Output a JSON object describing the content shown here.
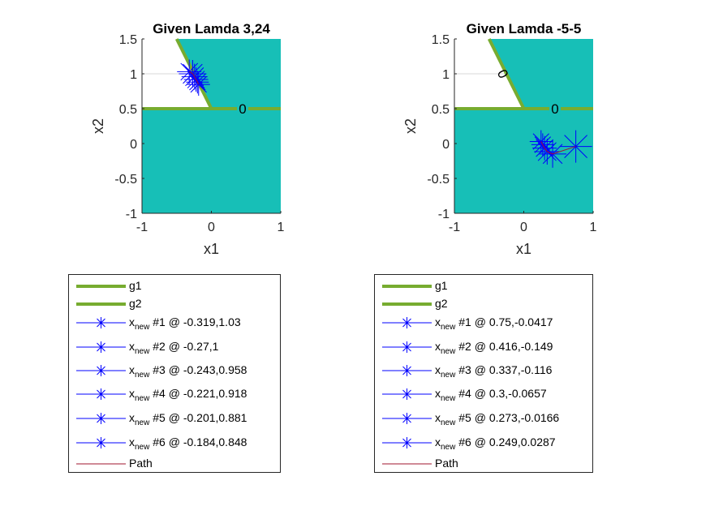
{
  "chart_data": [
    {
      "type": "contour",
      "title": "Given Lamda 3,24",
      "xlabel": "x1",
      "ylabel": "x2",
      "xlim": [
        -1,
        1
      ],
      "ylim": [
        -1,
        1.5
      ],
      "xticks": [
        "-1",
        "0",
        "1"
      ],
      "yticks": [
        "1.5",
        "1",
        "0.5",
        "0",
        "-0.5",
        "-1"
      ],
      "feasible_region_color": "#17bfb7",
      "constraint_color": "#77ac30",
      "marker_color": "#0000ff",
      "path_color": "#a2142f",
      "constraint_g1": {
        "name": "g1",
        "label": "",
        "points": [
          [
            -0.5,
            1.5
          ],
          [
            0,
            0.5
          ]
        ]
      },
      "constraint_g2": {
        "name": "g2",
        "label": "0",
        "points": [
          [
            -1,
            0.5
          ],
          [
            1,
            0.5
          ]
        ],
        "label_at": [
          0.45,
          0.5
        ]
      },
      "series": [
        {
          "name": "#1 @ -0.319,1.03",
          "x": -0.319,
          "y": 1.03
        },
        {
          "name": "#2 @ -0.27,1",
          "x": -0.27,
          "y": 1.0
        },
        {
          "name": "#3 @ -0.243,0.958",
          "x": -0.243,
          "y": 0.958
        },
        {
          "name": "#4 @ -0.221,0.918",
          "x": -0.221,
          "y": 0.918
        },
        {
          "name": "#5 @ -0.201,0.881",
          "x": -0.201,
          "y": 0.881
        },
        {
          "name": "#6 @ -0.184,0.848",
          "x": -0.184,
          "y": 0.848
        }
      ],
      "legend": {
        "g1": "g1",
        "g2": "g2",
        "x_base": "x",
        "x_sub": "new",
        "path": "Path"
      }
    },
    {
      "type": "contour",
      "title": "Given Lamda -5-5",
      "xlabel": "x1",
      "ylabel": "x2",
      "xlim": [
        -1,
        1
      ],
      "ylim": [
        -1,
        1.5
      ],
      "xticks": [
        "-1",
        "0",
        "1"
      ],
      "yticks": [
        "1.5",
        "1",
        "0.5",
        "0",
        "-0.5",
        "-1"
      ],
      "feasible_region_color": "#17bfb7",
      "constraint_color": "#77ac30",
      "marker_color": "#0000ff",
      "path_color": "#a2142f",
      "constraint_g1": {
        "name": "g1",
        "label": "0",
        "points": [
          [
            -0.5,
            1.5
          ],
          [
            0,
            0.5
          ]
        ],
        "label_at": [
          -0.3,
          1.0
        ]
      },
      "constraint_g2": {
        "name": "g2",
        "label": "0",
        "points": [
          [
            -1,
            0.5
          ],
          [
            1,
            0.5
          ]
        ],
        "label_at": [
          0.45,
          0.5
        ]
      },
      "series": [
        {
          "name": "#1 @ 0.75,-0.0417",
          "x": 0.75,
          "y": -0.0417
        },
        {
          "name": "#2 @ 0.416,-0.149",
          "x": 0.416,
          "y": -0.149
        },
        {
          "name": "#3 @ 0.337,-0.116",
          "x": 0.337,
          "y": -0.116
        },
        {
          "name": "#4 @ 0.3,-0.0657",
          "x": 0.3,
          "y": -0.0657
        },
        {
          "name": "#5 @ 0.273,-0.0166",
          "x": 0.273,
          "y": -0.0166
        },
        {
          "name": "#6 @ 0.249,0.0287",
          "x": 0.249,
          "y": 0.0287
        }
      ],
      "legend": {
        "g1": "g1",
        "g2": "g2",
        "x_base": "x",
        "x_sub": "new",
        "path": "Path"
      }
    }
  ]
}
